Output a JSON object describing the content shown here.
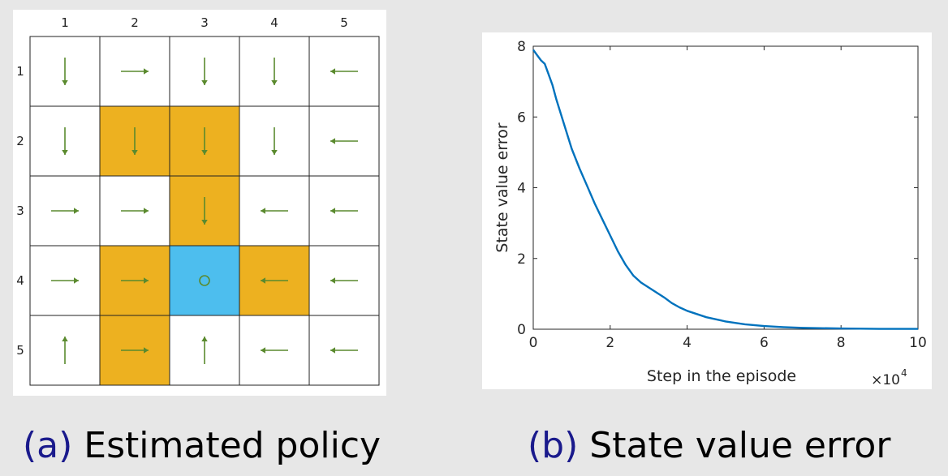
{
  "grid": {
    "col_labels": [
      "1",
      "2",
      "3",
      "4",
      "5"
    ],
    "row_labels": [
      "1",
      "2",
      "3",
      "4",
      "5"
    ],
    "colors": {
      "forbidden": "#edb120",
      "target": "#4dbeee",
      "normal": "#ffffff",
      "arrow": "#5a8a2e"
    },
    "cells": [
      [
        {
          "type": "normal",
          "action": "down"
        },
        {
          "type": "normal",
          "action": "right"
        },
        {
          "type": "normal",
          "action": "down"
        },
        {
          "type": "normal",
          "action": "down"
        },
        {
          "type": "normal",
          "action": "left"
        }
      ],
      [
        {
          "type": "normal",
          "action": "down"
        },
        {
          "type": "forbidden",
          "action": "down"
        },
        {
          "type": "forbidden",
          "action": "down"
        },
        {
          "type": "normal",
          "action": "down"
        },
        {
          "type": "normal",
          "action": "left"
        }
      ],
      [
        {
          "type": "normal",
          "action": "right"
        },
        {
          "type": "normal",
          "action": "right"
        },
        {
          "type": "forbidden",
          "action": "down"
        },
        {
          "type": "normal",
          "action": "left"
        },
        {
          "type": "normal",
          "action": "left"
        }
      ],
      [
        {
          "type": "normal",
          "action": "right"
        },
        {
          "type": "forbidden",
          "action": "right"
        },
        {
          "type": "target",
          "action": "stay"
        },
        {
          "type": "forbidden",
          "action": "left"
        },
        {
          "type": "normal",
          "action": "left"
        }
      ],
      [
        {
          "type": "normal",
          "action": "up"
        },
        {
          "type": "forbidden",
          "action": "right"
        },
        {
          "type": "normal",
          "action": "up"
        },
        {
          "type": "normal",
          "action": "left"
        },
        {
          "type": "normal",
          "action": "left"
        }
      ]
    ]
  },
  "chart_data": {
    "type": "line",
    "title": "",
    "xlabel": "Step in the episode",
    "ylabel": "State value error",
    "x_exponent_label": "×10",
    "x_exponent_power": "4",
    "xlim": [
      0,
      10
    ],
    "ylim": [
      0,
      8
    ],
    "xticks": [
      "0",
      "2",
      "4",
      "6",
      "8",
      "10"
    ],
    "yticks": [
      "0",
      "2",
      "4",
      "6",
      "8"
    ],
    "line_color": "#0072bd",
    "grid": false,
    "series": [
      {
        "x": [
          0,
          0.1,
          0.2,
          0.3,
          0.4,
          0.5,
          0.6,
          0.8,
          1.0,
          1.2,
          1.4,
          1.6,
          1.8,
          2.0,
          2.2,
          2.4,
          2.6,
          2.8,
          3.0,
          3.2,
          3.4,
          3.6,
          3.8,
          4.0,
          4.5,
          5.0,
          5.5,
          6.0,
          6.5,
          7.0,
          8.0,
          9.0,
          10.0
        ],
        "y": [
          7.9,
          7.75,
          7.6,
          7.5,
          7.2,
          6.9,
          6.5,
          5.8,
          5.1,
          4.55,
          4.05,
          3.55,
          3.1,
          2.65,
          2.2,
          1.82,
          1.52,
          1.32,
          1.18,
          1.04,
          0.9,
          0.74,
          0.62,
          0.52,
          0.34,
          0.22,
          0.14,
          0.09,
          0.06,
          0.04,
          0.02,
          0.01,
          0.01
        ]
      }
    ]
  },
  "captions": {
    "a_letter": "(a)",
    "a_text": "Estimated policy",
    "b_letter": "(b)",
    "b_text": "State value error"
  }
}
